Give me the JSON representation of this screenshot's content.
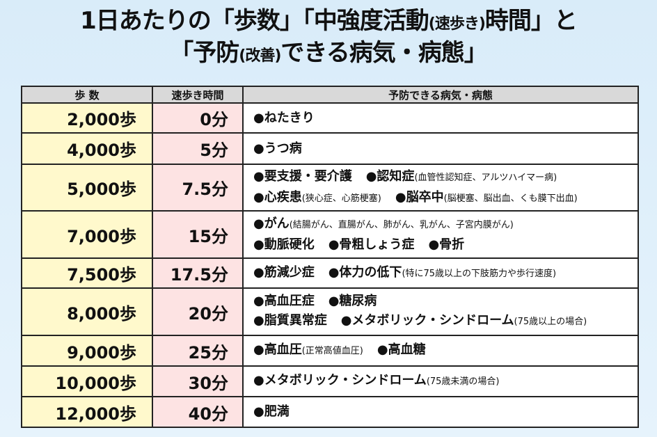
{
  "title": {
    "line1": [
      {
        "t": "1日あたりの「歩数」「中強度活動",
        "s": false
      },
      {
        "t": "(速歩き)",
        "s": true
      },
      {
        "t": "時間」と",
        "s": false
      }
    ],
    "line2": [
      {
        "t": "「予防",
        "s": false
      },
      {
        "t": "(改善)",
        "s": true
      },
      {
        "t": "できる病気・病態」",
        "s": false
      }
    ]
  },
  "headers": {
    "steps": "歩 数",
    "time": "速歩き時間",
    "disease": "予防できる病気・病態"
  },
  "colors": {
    "steps_bg": "#fff9cc",
    "time_bg": "#fde3e3",
    "header_bg": "#d9d9d9",
    "page_bg": "#e0f0fb"
  },
  "rows": [
    {
      "steps": "2,000歩",
      "time": "0分",
      "lines": [
        [
          {
            "main": "●ねたきり",
            "note": ""
          }
        ]
      ]
    },
    {
      "steps": "4,000歩",
      "time": "5分",
      "lines": [
        [
          {
            "main": "●うつ病",
            "note": ""
          }
        ]
      ]
    },
    {
      "steps": "5,000歩",
      "time": "7.5分",
      "lines": [
        [
          {
            "main": "●要支援・要介護",
            "note": ""
          },
          {
            "main": "●認知症",
            "note": "(血管性認知症、アルツハイマー病)"
          }
        ],
        [
          {
            "main": "●心疾患",
            "note": "(狭心症、心筋梗塞)"
          },
          {
            "main": "●脳卒中",
            "note": "(脳梗塞、脳出血、くも膜下出血)"
          }
        ]
      ]
    },
    {
      "steps": "7,000歩",
      "time": "15分",
      "lines": [
        [
          {
            "main": "●がん",
            "note": "(結腸がん、直腸がん、肺がん、乳がん、子宮内膜がん)"
          }
        ],
        [
          {
            "main": "●動脈硬化",
            "note": ""
          },
          {
            "main": "●骨粗しょう症",
            "note": ""
          },
          {
            "main": "●骨折",
            "note": ""
          }
        ]
      ]
    },
    {
      "steps": "7,500歩",
      "time": "17.5分",
      "lines": [
        [
          {
            "main": "●筋減少症",
            "note": ""
          },
          {
            "main": "●体力の低下",
            "note": "(特に75歳以上の下肢筋力や歩行速度)"
          }
        ]
      ]
    },
    {
      "steps": "8,000歩",
      "time": "20分",
      "lines": [
        [
          {
            "main": "●高血圧症",
            "note": ""
          },
          {
            "main": "●糖尿病",
            "note": ""
          }
        ],
        [
          {
            "main": "●脂質異常症",
            "note": ""
          },
          {
            "main": "●メタボリック・シンドローム",
            "note": "(75歳以上の場合)"
          }
        ]
      ]
    },
    {
      "steps": "9,000歩",
      "time": "25分",
      "lines": [
        [
          {
            "main": "●高血圧",
            "note": "(正常高値血圧)"
          },
          {
            "main": "●高血糖",
            "note": ""
          }
        ]
      ]
    },
    {
      "steps": "10,000歩",
      "time": "30分",
      "lines": [
        [
          {
            "main": "●メタボリック・シンドローム",
            "note": "(75歳未満の場合)"
          }
        ]
      ]
    },
    {
      "steps": "12,000歩",
      "time": "40分",
      "lines": [
        [
          {
            "main": "●肥満",
            "note": ""
          }
        ]
      ]
    }
  ]
}
